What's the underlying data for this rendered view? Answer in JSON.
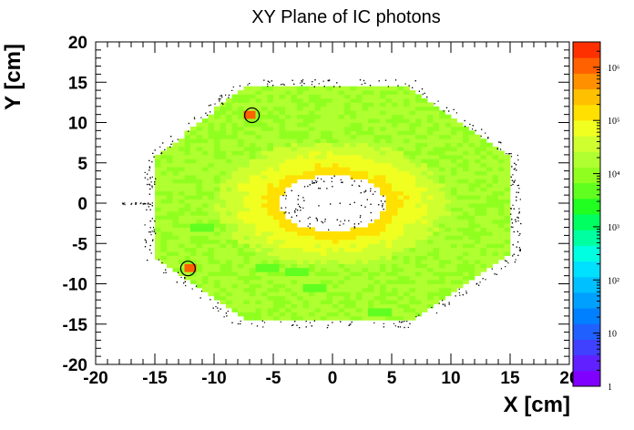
{
  "chart_data": {
    "type": "heatmap",
    "title": "XY Plane of IC photons",
    "xlabel": "X [cm]",
    "ylabel": "Y [cm]",
    "xlim": [
      -20,
      20
    ],
    "ylim": [
      -20,
      20
    ],
    "x_ticks": [
      "-20",
      "-15",
      "-10",
      "-5",
      "0",
      "5",
      "10",
      "15",
      "20"
    ],
    "y_ticks": [
      "20",
      "15",
      "10",
      "5",
      "0",
      "-5",
      "-10",
      "-15",
      "-20"
    ],
    "z_scale": "log",
    "zlim": [
      1,
      3000000
    ],
    "z_ticks": [
      {
        "value": 1,
        "label": "1"
      },
      {
        "value": 10,
        "label": "10"
      },
      {
        "value": 100,
        "label": "10²"
      },
      {
        "value": 1000,
        "label": "10³"
      },
      {
        "value": 10000,
        "label": "10⁴"
      },
      {
        "value": 100000,
        "label": "10⁵"
      },
      {
        "value": 1000000,
        "label": "10⁶"
      }
    ],
    "palette": [
      "#8000ff",
      "#6020ff",
      "#4040ff",
      "#2060ff",
      "#0080ff",
      "#00a0ff",
      "#00c0ff",
      "#00e0ff",
      "#00ffe0",
      "#00ffa0",
      "#00ff60",
      "#20ff20",
      "#60ff20",
      "#90ff20",
      "#b0ff30",
      "#d0ff30",
      "#f0ff20",
      "#ffe000",
      "#ffc000",
      "#ff9000",
      "#ff6000",
      "#ff3000"
    ],
    "outer_shape_xy": [
      [
        -7.5,
        14.5
      ],
      [
        6.5,
        14.5
      ],
      [
        15,
        5.5
      ],
      [
        15,
        -6.5
      ],
      [
        6.5,
        -14.5
      ],
      [
        -7.5,
        -14.5
      ],
      [
        -15,
        -6.5
      ],
      [
        -15,
        5.5
      ]
    ],
    "inner_hole": {
      "cx": 0,
      "cy": 0,
      "rx": 4.5,
      "ry": 3.5
    },
    "ring_peak_density": 100000,
    "body_density": 10000,
    "hot_spots": [
      {
        "x": -6.8,
        "y": 10.9,
        "density": 1000000
      },
      {
        "x": -12.2,
        "y": -8.1,
        "density": 1000000
      }
    ],
    "cool_patches": [
      {
        "x": -11,
        "y": -3
      },
      {
        "x": -5.5,
        "y": -8
      },
      {
        "x": -3,
        "y": -8.5
      },
      {
        "x": -1.5,
        "y": -10.5
      },
      {
        "x": 4,
        "y": -13.5
      }
    ]
  }
}
